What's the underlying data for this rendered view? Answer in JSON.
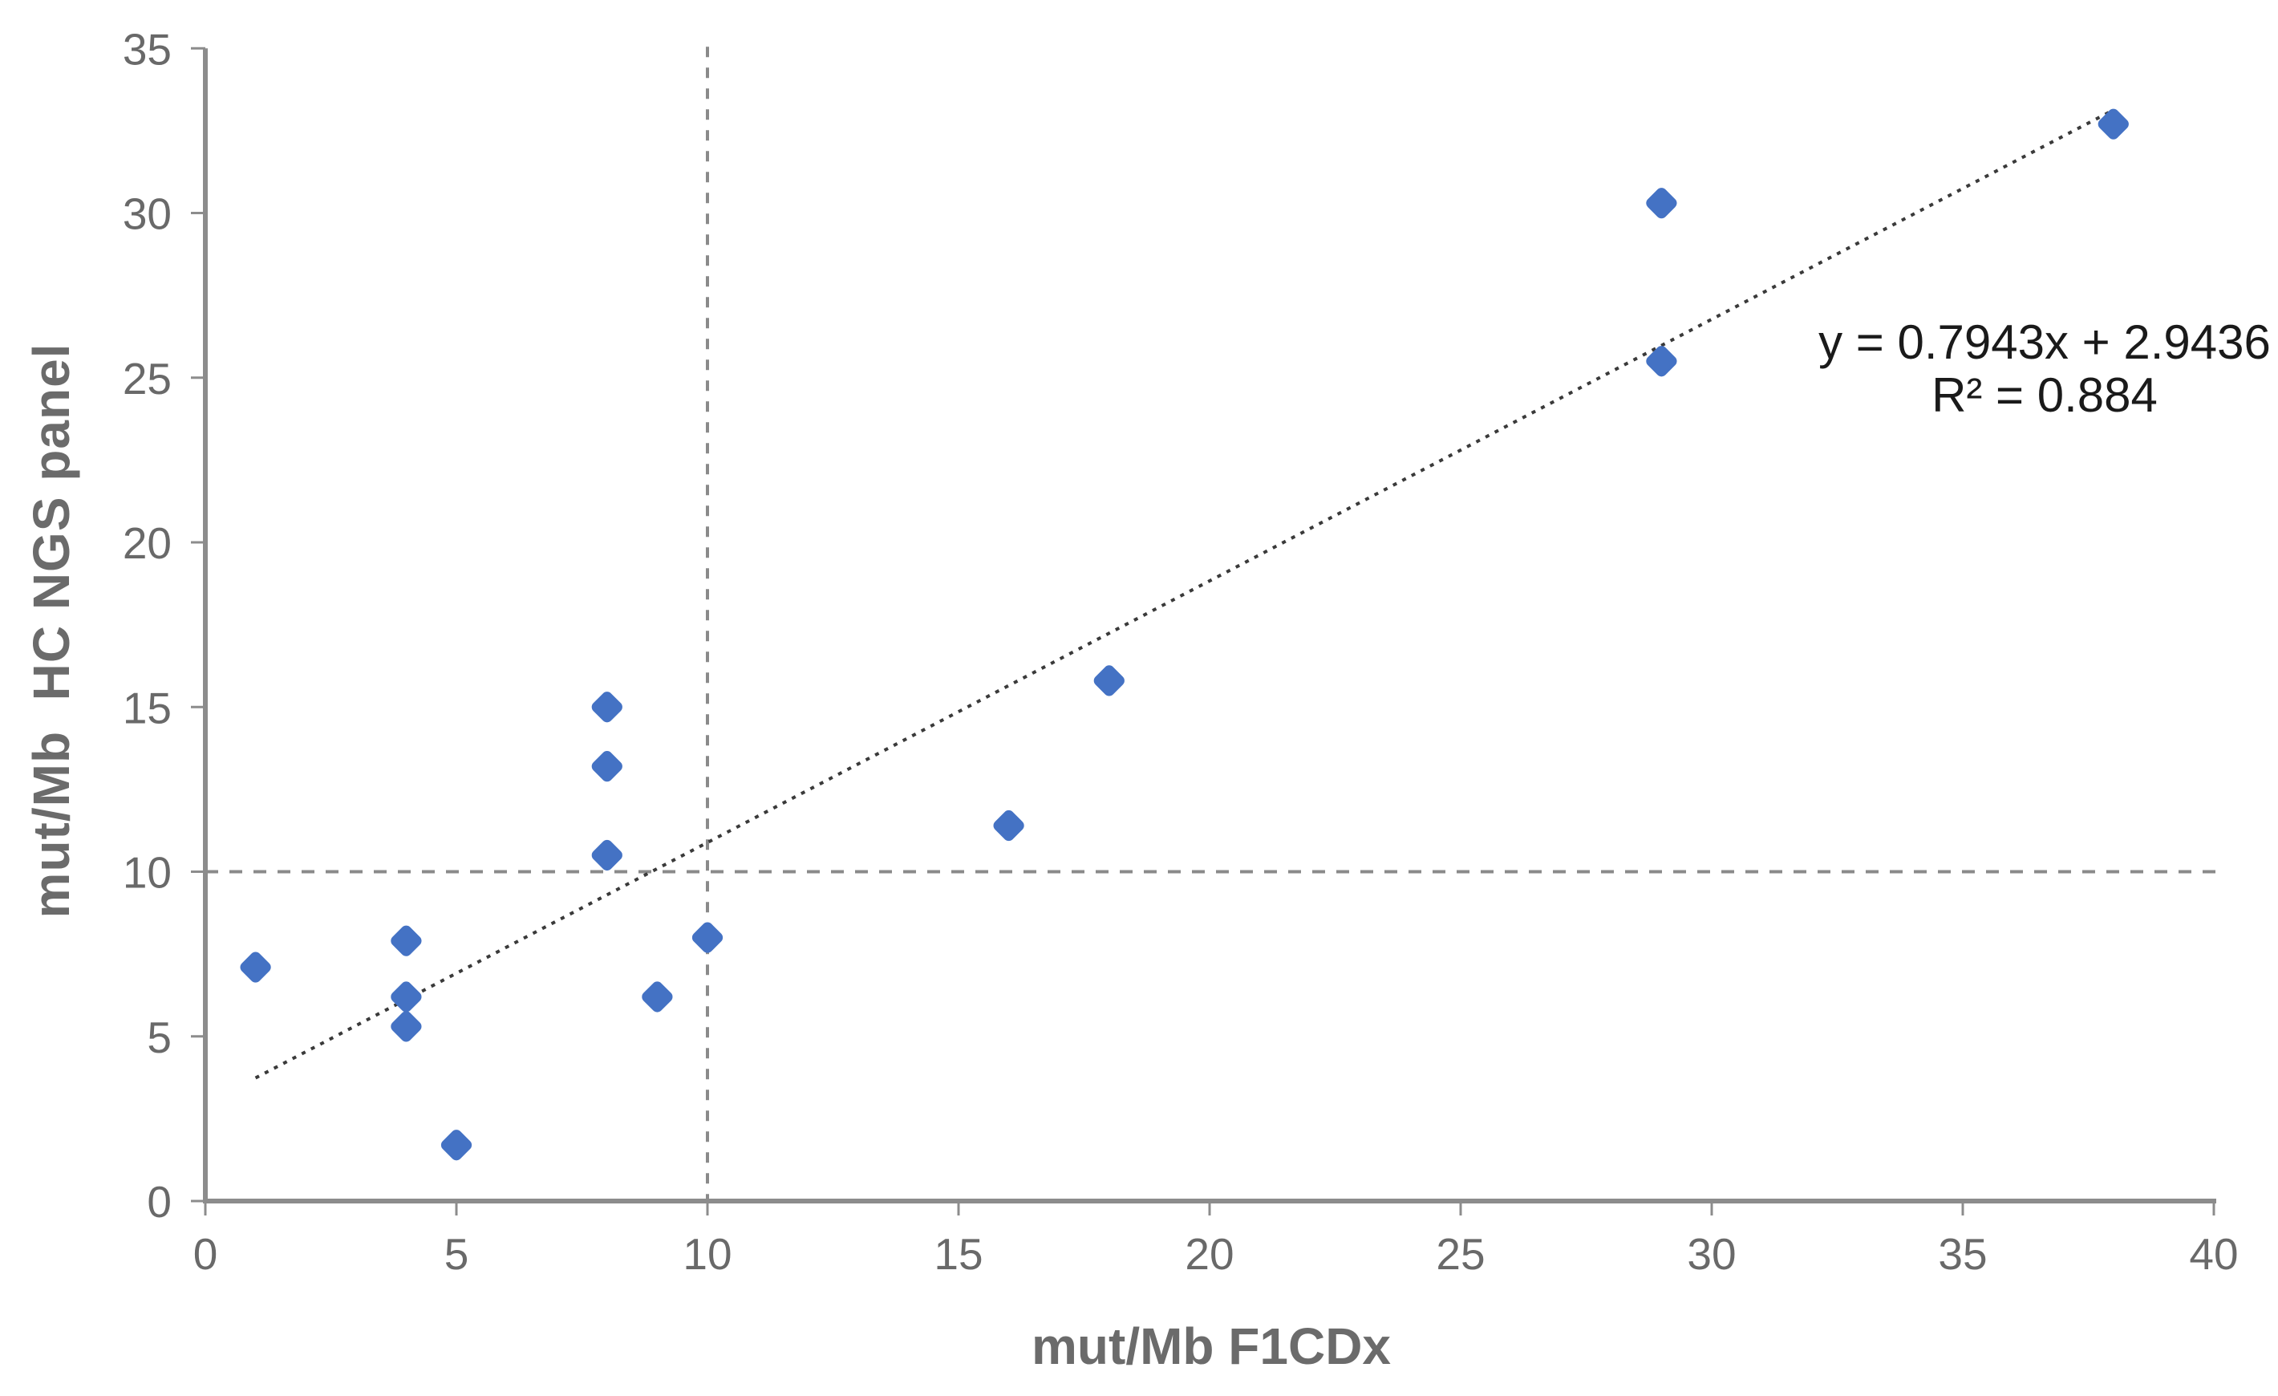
{
  "chart_data": {
    "type": "scatter",
    "title": "",
    "xlabel": "mut/Mb F1CDx",
    "ylabel": "mut/Mb  HC NGS panel",
    "xlim": [
      0,
      40
    ],
    "ylim": [
      0,
      35
    ],
    "x_ticks": [
      0,
      5,
      10,
      15,
      20,
      25,
      30,
      35,
      40
    ],
    "y_ticks": [
      0,
      5,
      10,
      15,
      20,
      25,
      30,
      35
    ],
    "grid": false,
    "legend": false,
    "marker": {
      "shape": "diamond",
      "size": 44
    },
    "points": [
      [
        1,
        7.1
      ],
      [
        4,
        7.9
      ],
      [
        4,
        6.2
      ],
      [
        4,
        5.3
      ],
      [
        5,
        1.7
      ],
      [
        8,
        15.0
      ],
      [
        8,
        13.2
      ],
      [
        8,
        10.5
      ],
      [
        9,
        6.2
      ],
      [
        10,
        8.0
      ],
      [
        16,
        11.4
      ],
      [
        18,
        15.8
      ],
      [
        29,
        30.3
      ],
      [
        29,
        25.5
      ],
      [
        38,
        32.7
      ]
    ],
    "trendline": {
      "equation": "y = 0.7943x + 2.9436",
      "r_squared_label": "R² = 0.884",
      "slope": 0.7943,
      "intercept": 2.9436,
      "r_squared": 0.884,
      "x_start": 1,
      "x_end": 38,
      "style": "dotted"
    },
    "reference_lines": [
      {
        "axis": "x",
        "value": 10,
        "style": "dashed"
      },
      {
        "axis": "y",
        "value": 10,
        "style": "dashed"
      }
    ],
    "colors": {
      "marker": "#4472C4",
      "axis": "#8c8c8c",
      "tick_label": "#696969",
      "axis_title": "#6b6b6b",
      "equation_text": "#1a1a1a",
      "trendline": "#3a3a3a",
      "reference_line": "#8a8a8a",
      "background": "#ffffff"
    }
  }
}
